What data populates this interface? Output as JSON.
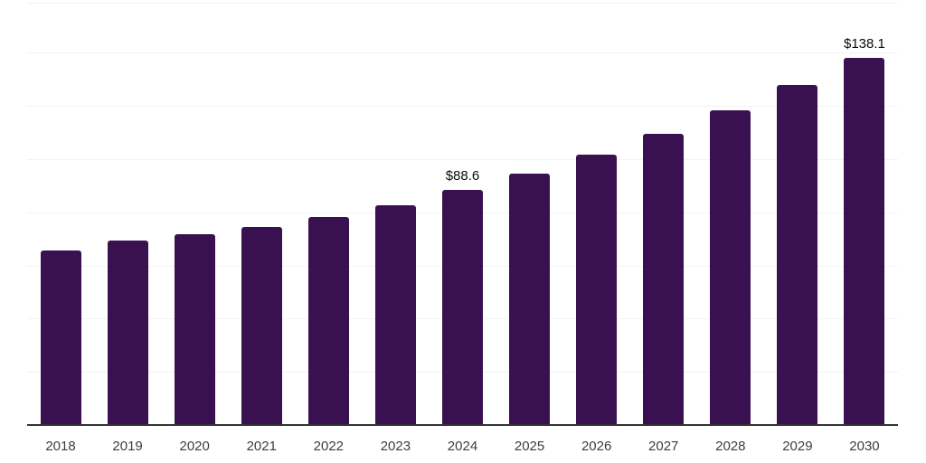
{
  "chart": {
    "background": "#ffffff",
    "bar_color": "#3a1150",
    "axis_line_color": "#333333",
    "gridline_color": "#f2f2f2",
    "x_label_color": "#3c3c3c",
    "data_label_color": "#0a0a0a"
  },
  "chart_data": {
    "type": "bar",
    "title": "",
    "xlabel": "",
    "ylabel": "",
    "categories": [
      "2018",
      "2019",
      "2020",
      "2021",
      "2022",
      "2023",
      "2024",
      "2025",
      "2026",
      "2027",
      "2028",
      "2029",
      "2030"
    ],
    "values": [
      65.6,
      69.4,
      71.8,
      74.6,
      78.2,
      82.8,
      88.6,
      94.4,
      101.7,
      109.5,
      118.5,
      127.9,
      138.1
    ],
    "labels": [
      "",
      "",
      "",
      "",
      "",
      "",
      "$88.6",
      "",
      "",
      "",
      "",
      "",
      "$138.1"
    ],
    "ylim": [
      0,
      157
    ],
    "gridline_interval": 20,
    "grid": true,
    "legend": false,
    "y_axis_labels_shown": false
  }
}
